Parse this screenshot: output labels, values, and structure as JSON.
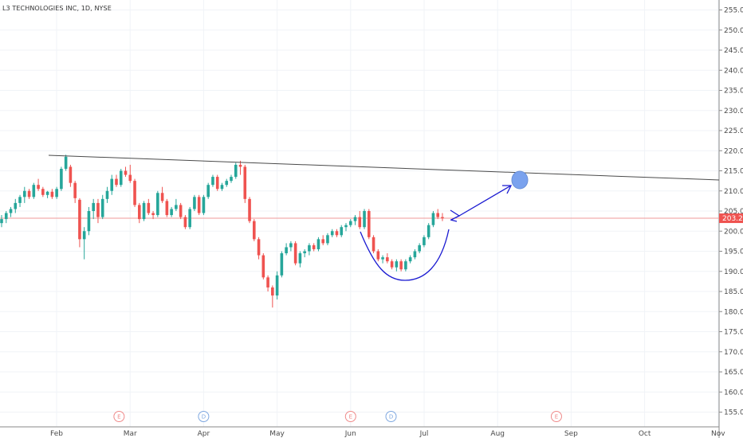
{
  "header": {
    "symbol_title": "L3 TECHNOLOGIES INC, 1D, NYSE"
  },
  "colors": {
    "up": "#26a69a",
    "down": "#ef5350",
    "drawing": "#1a1ad1",
    "trendline": "#4a4a4a",
    "target": "#7aa2ee",
    "price_line": "#ef9a9a"
  },
  "chart_data": {
    "type": "candlestick",
    "title": "L3 TECHNOLOGIES INC, 1D, NYSE",
    "ylim": [
      152,
      257
    ],
    "y_ticks": [
      "255.00",
      "250.00",
      "245.00",
      "240.00",
      "235.00",
      "230.00",
      "225.00",
      "220.00",
      "215.00",
      "210.00",
      "205.00",
      "200.00",
      "195.00",
      "190.00",
      "185.00",
      "180.00",
      "175.00",
      "170.00",
      "165.00",
      "160.00",
      "155.00"
    ],
    "x_ticks": [
      "Feb",
      "Mar",
      "Apr",
      "May",
      "Jun",
      "Jul",
      "Aug",
      "Sep",
      "Oct",
      "Nov"
    ],
    "last_price": "203.21",
    "events": [
      {
        "label": "E",
        "month": 0.85,
        "kind": "earnings"
      },
      {
        "label": "D",
        "month": 2.0,
        "kind": "dividend"
      },
      {
        "label": "E",
        "month": 4.0,
        "kind": "earnings"
      },
      {
        "label": "D",
        "month": 4.55,
        "kind": "dividend"
      },
      {
        "label": "E",
        "month": 6.8,
        "kind": "earnings"
      }
    ],
    "series": [
      {
        "values": [
          [
            202,
            204,
            201,
            203
          ],
          [
            203,
            205,
            202,
            204.5
          ],
          [
            204.5,
            206,
            203.5,
            205.5
          ],
          [
            205.5,
            208,
            204.5,
            207
          ],
          [
            207,
            209,
            206,
            208.5
          ],
          [
            208.5,
            211,
            207,
            210
          ],
          [
            210,
            210.5,
            208,
            208.5
          ],
          [
            208.5,
            212,
            208,
            211.5
          ],
          [
            211.5,
            213,
            210,
            210.5
          ],
          [
            210.5,
            211,
            208.5,
            209
          ],
          [
            209,
            210,
            208.2,
            209.8
          ],
          [
            209.8,
            210.5,
            208,
            208.5
          ],
          [
            208.5,
            211,
            208,
            210.5
          ],
          [
            210.5,
            216,
            210,
            215.5
          ],
          [
            215.5,
            219,
            215,
            218.5
          ],
          [
            216,
            216.5,
            211,
            212
          ],
          [
            212,
            212.5,
            207,
            208.2
          ],
          [
            207.8,
            208.2,
            196,
            198
          ],
          [
            198,
            201,
            193,
            200
          ],
          [
            200,
            206,
            199,
            205
          ],
          [
            205,
            208,
            203,
            207
          ],
          [
            207,
            208,
            202,
            203.5
          ],
          [
            203.5,
            209,
            203,
            208
          ],
          [
            208,
            211,
            207,
            210
          ],
          [
            210,
            214,
            209,
            213
          ],
          [
            213,
            214,
            211,
            211.5
          ],
          [
            211.5,
            215.5,
            211,
            215
          ],
          [
            215,
            216,
            213.5,
            214
          ],
          [
            214,
            216.5,
            212,
            212.5
          ],
          [
            212.5,
            213,
            206,
            206.5
          ],
          [
            206.5,
            207,
            202,
            203
          ],
          [
            203,
            207.5,
            202.5,
            207
          ],
          [
            207,
            208,
            204,
            204.5
          ],
          [
            204.5,
            205,
            203,
            204
          ],
          [
            204,
            210,
            203.5,
            209.5
          ],
          [
            209.5,
            211,
            207,
            207.5
          ],
          [
            207.5,
            208,
            203.5,
            204
          ],
          [
            204,
            206,
            203.5,
            205.5
          ],
          [
            205.5,
            208,
            205,
            206.5
          ],
          [
            206.5,
            207,
            203,
            203.5
          ],
          [
            203.5,
            204,
            200.5,
            201
          ],
          [
            201,
            206,
            200.5,
            205.5
          ],
          [
            205.5,
            209,
            205,
            208.5
          ],
          [
            208.5,
            209,
            204,
            204.5
          ],
          [
            204.5,
            209,
            204,
            208.5
          ],
          [
            208.5,
            212,
            208,
            211.5
          ],
          [
            211.5,
            214,
            211,
            213.5
          ],
          [
            213.5,
            214,
            210,
            210.5
          ],
          [
            210.5,
            212,
            210,
            211.5
          ],
          [
            211.5,
            213,
            211,
            212.5
          ],
          [
            212.5,
            214,
            212,
            213.5
          ],
          [
            213.5,
            217,
            213,
            216.5
          ],
          [
            216.5,
            217.5,
            214,
            216
          ],
          [
            216,
            216.5,
            207,
            208
          ],
          [
            208,
            208.5,
            202,
            202.5
          ],
          [
            202.5,
            203,
            197.5,
            198
          ],
          [
            198,
            198.5,
            193,
            194
          ],
          [
            194,
            194.5,
            188,
            188.5
          ],
          [
            188.5,
            189,
            185,
            186
          ],
          [
            186,
            186.5,
            181,
            184
          ],
          [
            184,
            190,
            183,
            189
          ],
          [
            189,
            195,
            188.5,
            194.5
          ],
          [
            194.5,
            197,
            194,
            196
          ],
          [
            196,
            197.5,
            195,
            197
          ],
          [
            197,
            197.5,
            191.5,
            192
          ],
          [
            192,
            195,
            191,
            194.5
          ],
          [
            194.5,
            195.5,
            193.5,
            195
          ],
          [
            195,
            197,
            194,
            196.5
          ],
          [
            196.5,
            197,
            195,
            195.5
          ],
          [
            195.5,
            198.5,
            195,
            198
          ],
          [
            198,
            199,
            196.5,
            197
          ],
          [
            197,
            199.5,
            196.5,
            199
          ],
          [
            199,
            200.5,
            198.5,
            200
          ],
          [
            200,
            200.5,
            198.5,
            199
          ],
          [
            199,
            201.5,
            198.5,
            201
          ],
          [
            201,
            202,
            200,
            201.5
          ],
          [
            201.5,
            203,
            201,
            202.5
          ],
          [
            202.5,
            204,
            201.5,
            203.5
          ],
          [
            203.5,
            205,
            200.5,
            201
          ],
          [
            201,
            205.5,
            200.5,
            205
          ],
          [
            205,
            205.5,
            198,
            198.5
          ],
          [
            198.5,
            199,
            194.5,
            195
          ],
          [
            195,
            195.5,
            192.5,
            193
          ],
          [
            193,
            194,
            192,
            193.5
          ],
          [
            193.5,
            194.5,
            192,
            192.5
          ],
          [
            192.5,
            193,
            190.5,
            191
          ],
          [
            191,
            193,
            190,
            192.5
          ],
          [
            192.5,
            193,
            190,
            190.5
          ],
          [
            190.5,
            193,
            190,
            192.5
          ],
          [
            192.5,
            194,
            192,
            193.5
          ],
          [
            193.5,
            195.5,
            193,
            195
          ],
          [
            195,
            197,
            194.5,
            196.5
          ],
          [
            196.5,
            199,
            196,
            198.5
          ],
          [
            198.5,
            202,
            198,
            201.5
          ],
          [
            201.5,
            205,
            201,
            204.5
          ],
          [
            204.5,
            205.5,
            203,
            203.5
          ],
          [
            203.5,
            204.5,
            202.5,
            203.2
          ]
        ]
      }
    ],
    "annotations": {
      "trendline": true,
      "cup_curve": true,
      "forecast_arrow": true,
      "target_circle": true
    }
  }
}
